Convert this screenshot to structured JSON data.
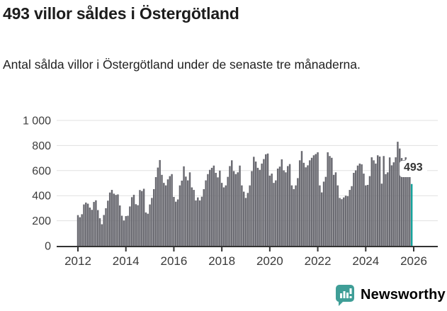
{
  "header": {
    "title": "493 villor såldes i Östergötland",
    "subtitle": "Antal sålda villor i Östergötland under de senaste tre månaderna."
  },
  "chart_data": {
    "type": "bar",
    "title": "493 villor såldes i Östergötland",
    "subtitle": "Antal sålda villor i Östergötland under de senaste tre månaderna.",
    "frequency": "monthly",
    "start": "2012-01",
    "end": "2025-12",
    "ylim": [
      0,
      1000
    ],
    "grid": true,
    "legend": false,
    "bar_color": "#6a6a71",
    "highlight_color": "#16a29c",
    "highlight_index": 167,
    "yticks": [
      {
        "value": 0,
        "label": "0"
      },
      {
        "value": 200,
        "label": "200"
      },
      {
        "value": 400,
        "label": "400"
      },
      {
        "value": 600,
        "label": "600"
      },
      {
        "value": 800,
        "label": "800"
      },
      {
        "value": 1000,
        "label": "1 000"
      }
    ],
    "xticks": [
      {
        "year": 2012,
        "label": "2012"
      },
      {
        "year": 2014,
        "label": "2014"
      },
      {
        "year": 2016,
        "label": "2016"
      },
      {
        "year": 2018,
        "label": "2018"
      },
      {
        "year": 2020,
        "label": "2020"
      },
      {
        "year": 2022,
        "label": "2022"
      },
      {
        "year": 2024,
        "label": "2024"
      },
      {
        "year": 2026,
        "label": "2026"
      }
    ],
    "values": [
      245,
      228,
      252,
      330,
      345,
      336,
      305,
      287,
      350,
      363,
      285,
      220,
      172,
      246,
      300,
      360,
      425,
      446,
      416,
      406,
      410,
      322,
      240,
      202,
      237,
      240,
      314,
      388,
      407,
      332,
      324,
      445,
      437,
      455,
      266,
      256,
      330,
      382,
      452,
      548,
      624,
      684,
      566,
      502,
      482,
      530,
      556,
      572,
      390,
      352,
      370,
      482,
      520,
      634,
      552,
      522,
      586,
      466,
      446,
      362,
      386,
      362,
      392,
      452,
      522,
      572,
      606,
      622,
      640,
      582,
      546,
      600,
      502,
      466,
      482,
      550,
      636,
      682,
      596,
      572,
      586,
      640,
      482,
      432,
      382,
      422,
      482,
      596,
      710,
      672,
      622,
      606,
      656,
      692,
      730,
      736,
      560,
      576,
      502,
      522,
      616,
      632,
      690,
      602,
      586,
      636,
      652,
      482,
      452,
      482,
      540,
      682,
      756,
      662,
      626,
      642,
      682,
      702,
      722,
      732,
      746,
      482,
      426,
      512,
      550,
      746,
      716,
      702,
      566,
      586,
      482,
      382,
      372,
      386,
      400,
      396,
      446,
      476,
      582,
      602,
      640,
      656,
      650,
      576,
      482,
      486,
      556,
      706,
      682,
      656,
      722,
      712,
      496,
      716,
      572,
      586,
      705,
      642,
      666,
      706,
      830,
      776,
      700,
      682,
      706,
      620,
      580,
      493
    ],
    "annotation": {
      "label": "493",
      "value": 493
    }
  },
  "footer": {
    "brand": "Newsworthy",
    "brand_color": "#3a9b94"
  }
}
